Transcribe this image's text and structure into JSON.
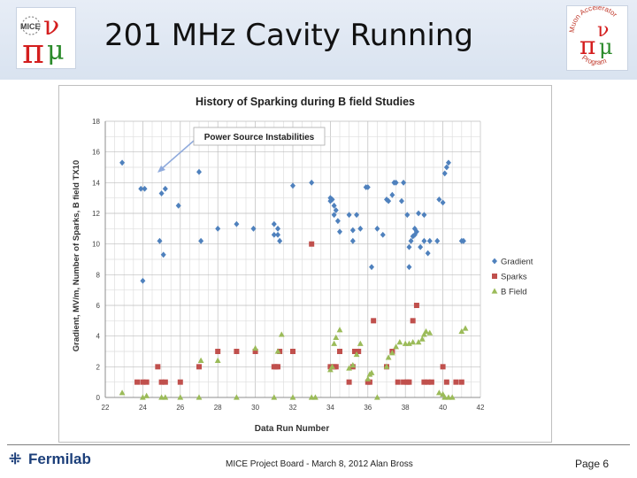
{
  "slide": {
    "title": "201 MHz Cavity Running",
    "footer_org": "Fermilab",
    "footer_text": "MICE Project Board - March 8, 2012   Alan Bross",
    "page": "Page 6"
  },
  "logos": {
    "left": {
      "alt": "MICE logo",
      "text": "MICE",
      "colors": {
        "pi": "#d41e1e",
        "mu": "#2a8a2a",
        "nu": "#1f4fa8"
      }
    },
    "right": {
      "alt": "Muon Accelerator Program logo",
      "text": "Muon Accelerator Program",
      "colors": {
        "pi": "#d41e1e",
        "mu": "#2a8a2a",
        "nu": "#1f4fa8"
      }
    }
  },
  "chart_data": {
    "type": "scatter",
    "title": "History of Sparking during B field Studies",
    "xlabel": "Data Run Number",
    "ylabel": "Gradient, MV/m, Number of Sparks, B field TX10",
    "xlim": [
      22,
      42
    ],
    "ylim": [
      0,
      18
    ],
    "xticks": [
      22,
      24,
      26,
      28,
      30,
      32,
      34,
      36,
      38,
      40,
      42
    ],
    "yticks": [
      0,
      2,
      4,
      6,
      8,
      10,
      12,
      14,
      16,
      18
    ],
    "grid": true,
    "legend_position": "right",
    "annotation": {
      "text": "Power Source Instabilities",
      "target": [
        23.0,
        14.8
      ]
    },
    "series": [
      {
        "name": "Gradient",
        "marker": "diamond",
        "color": "#4f81bd",
        "points": [
          [
            22.9,
            15.3
          ],
          [
            23.9,
            13.6
          ],
          [
            24.1,
            13.6
          ],
          [
            24.0,
            7.6
          ],
          [
            24.9,
            10.2
          ],
          [
            25.0,
            13.3
          ],
          [
            25.2,
            13.6
          ],
          [
            25.1,
            9.3
          ],
          [
            25.9,
            12.5
          ],
          [
            27.0,
            14.7
          ],
          [
            27.1,
            10.2
          ],
          [
            28.0,
            11.0
          ],
          [
            29.0,
            11.3
          ],
          [
            29.9,
            11.0
          ],
          [
            31.0,
            11.3
          ],
          [
            31.0,
            10.6
          ],
          [
            31.2,
            11.0
          ],
          [
            31.2,
            10.6
          ],
          [
            31.3,
            10.2
          ],
          [
            32.0,
            13.8
          ],
          [
            33.0,
            14.0
          ],
          [
            34.0,
            13.0
          ],
          [
            34.0,
            12.8
          ],
          [
            34.1,
            12.9
          ],
          [
            34.2,
            12.5
          ],
          [
            34.2,
            11.9
          ],
          [
            34.3,
            12.2
          ],
          [
            34.4,
            11.5
          ],
          [
            34.5,
            10.8
          ],
          [
            35.0,
            11.9
          ],
          [
            35.2,
            10.2
          ],
          [
            35.2,
            10.9
          ],
          [
            35.4,
            11.9
          ],
          [
            35.6,
            11.0
          ],
          [
            35.9,
            13.7
          ],
          [
            36.0,
            13.7
          ],
          [
            36.2,
            8.5
          ],
          [
            36.5,
            11.0
          ],
          [
            36.8,
            10.6
          ],
          [
            37.0,
            12.9
          ],
          [
            37.1,
            12.8
          ],
          [
            37.3,
            13.2
          ],
          [
            37.4,
            14.0
          ],
          [
            37.5,
            14.0
          ],
          [
            37.8,
            12.8
          ],
          [
            37.9,
            14.0
          ],
          [
            38.1,
            11.9
          ],
          [
            38.2,
            8.5
          ],
          [
            38.2,
            9.8
          ],
          [
            38.3,
            10.2
          ],
          [
            38.4,
            10.5
          ],
          [
            38.5,
            11.0
          ],
          [
            38.5,
            10.6
          ],
          [
            38.6,
            10.8
          ],
          [
            38.7,
            12.0
          ],
          [
            38.8,
            9.8
          ],
          [
            39.0,
            11.9
          ],
          [
            39.0,
            10.2
          ],
          [
            39.2,
            9.4
          ],
          [
            39.3,
            10.2
          ],
          [
            39.7,
            10.2
          ],
          [
            39.8,
            12.9
          ],
          [
            40.0,
            12.7
          ],
          [
            40.1,
            14.6
          ],
          [
            40.2,
            15.0
          ],
          [
            40.3,
            15.3
          ],
          [
            41.0,
            10.2
          ],
          [
            41.1,
            10.2
          ]
        ]
      },
      {
        "name": "Sparks",
        "marker": "square",
        "color": "#c0504d",
        "points": [
          [
            23.7,
            1
          ],
          [
            24.0,
            1
          ],
          [
            24.2,
            1
          ],
          [
            24.8,
            2
          ],
          [
            25.0,
            1
          ],
          [
            25.2,
            1
          ],
          [
            26.0,
            1
          ],
          [
            27.0,
            2
          ],
          [
            28.0,
            3
          ],
          [
            29.0,
            3
          ],
          [
            30.0,
            3
          ],
          [
            31.0,
            2
          ],
          [
            31.1,
            2
          ],
          [
            31.2,
            2
          ],
          [
            31.3,
            3
          ],
          [
            32.0,
            3
          ],
          [
            33.0,
            10
          ],
          [
            34.0,
            2
          ],
          [
            34.2,
            2
          ],
          [
            34.3,
            2
          ],
          [
            34.5,
            3
          ],
          [
            35.0,
            1
          ],
          [
            35.2,
            2
          ],
          [
            35.3,
            3
          ],
          [
            35.5,
            3
          ],
          [
            36.0,
            1
          ],
          [
            36.1,
            1
          ],
          [
            36.3,
            5
          ],
          [
            37.0,
            2
          ],
          [
            37.3,
            3
          ],
          [
            37.6,
            1
          ],
          [
            37.9,
            1
          ],
          [
            38.1,
            1
          ],
          [
            38.2,
            1
          ],
          [
            38.4,
            5
          ],
          [
            38.6,
            6
          ],
          [
            39.0,
            1
          ],
          [
            39.2,
            1
          ],
          [
            39.4,
            1
          ],
          [
            40.0,
            2
          ],
          [
            40.2,
            1
          ],
          [
            40.7,
            1
          ],
          [
            41.0,
            1
          ]
        ]
      },
      {
        "name": "B Field",
        "marker": "triangle",
        "color": "#9bbb59",
        "points": [
          [
            22.9,
            0.3
          ],
          [
            24.0,
            0
          ],
          [
            24.2,
            0.1
          ],
          [
            25.0,
            0
          ],
          [
            25.2,
            0
          ],
          [
            26.0,
            0
          ],
          [
            27.0,
            0
          ],
          [
            27.1,
            2.4
          ],
          [
            28.0,
            2.4
          ],
          [
            29.0,
            0
          ],
          [
            30.0,
            3.2
          ],
          [
            31.0,
            0
          ],
          [
            31.2,
            3.0
          ],
          [
            31.4,
            4.1
          ],
          [
            32.0,
            0
          ],
          [
            33.0,
            0
          ],
          [
            33.2,
            0
          ],
          [
            34.0,
            1.8
          ],
          [
            34.1,
            2.0
          ],
          [
            34.2,
            3.5
          ],
          [
            34.3,
            3.9
          ],
          [
            34.5,
            4.4
          ],
          [
            35.0,
            1.9
          ],
          [
            35.2,
            2.1
          ],
          [
            35.4,
            2.8
          ],
          [
            35.6,
            3.5
          ],
          [
            36.0,
            1.2
          ],
          [
            36.1,
            1.5
          ],
          [
            36.2,
            1.6
          ],
          [
            36.5,
            0
          ],
          [
            37.0,
            2.0
          ],
          [
            37.1,
            2.6
          ],
          [
            37.3,
            2.9
          ],
          [
            37.5,
            3.3
          ],
          [
            37.7,
            3.6
          ],
          [
            38.0,
            3.5
          ],
          [
            38.2,
            3.5
          ],
          [
            38.4,
            3.6
          ],
          [
            38.7,
            3.6
          ],
          [
            38.9,
            3.8
          ],
          [
            39.0,
            4.1
          ],
          [
            39.1,
            4.3
          ],
          [
            39.3,
            4.2
          ],
          [
            39.8,
            0.3
          ],
          [
            40.0,
            0.2
          ],
          [
            40.1,
            0
          ],
          [
            40.3,
            0
          ],
          [
            40.5,
            0
          ],
          [
            41.0,
            4.3
          ],
          [
            41.2,
            4.5
          ]
        ]
      }
    ]
  }
}
